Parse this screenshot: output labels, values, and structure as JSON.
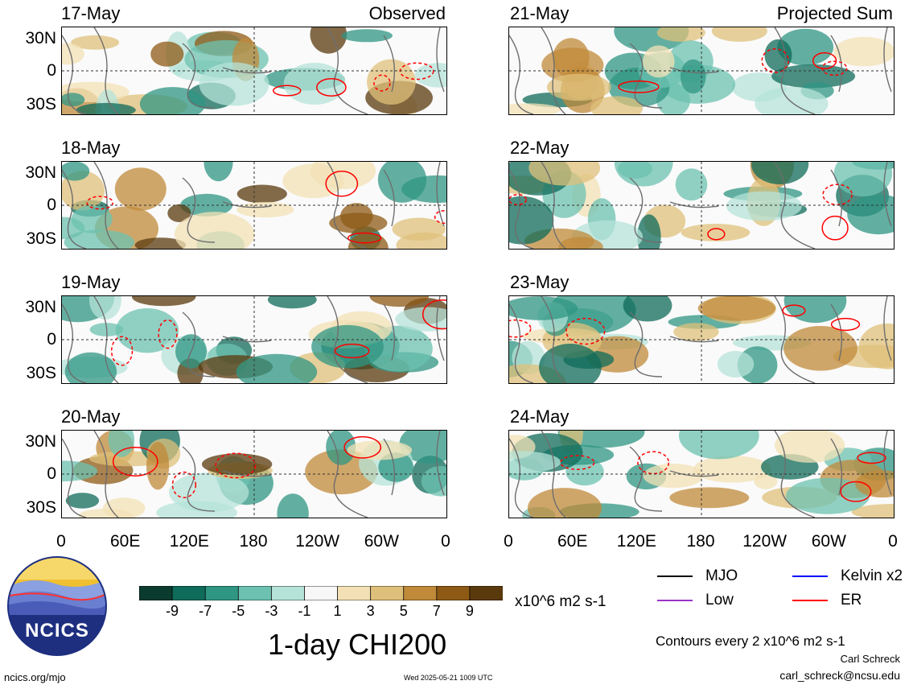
{
  "panels_left": [
    {
      "date": "17-May",
      "tag": "Observed"
    },
    {
      "date": "18-May",
      "tag": ""
    },
    {
      "date": "19-May",
      "tag": ""
    },
    {
      "date": "20-May",
      "tag": ""
    }
  ],
  "panels_right": [
    {
      "date": "21-May",
      "tag": "Projected Sum"
    },
    {
      "date": "22-May",
      "tag": ""
    },
    {
      "date": "23-May",
      "tag": ""
    },
    {
      "date": "24-May",
      "tag": ""
    }
  ],
  "lat_labels": [
    "30N",
    "0",
    "30S"
  ],
  "lon_labels": [
    "0",
    "60E",
    "120E",
    "180",
    "120W",
    "60W",
    "0"
  ],
  "colorbar": {
    "labels": [
      "-9",
      "-7",
      "-5",
      "-3",
      "-1",
      "1",
      "3",
      "5",
      "7",
      "9"
    ],
    "colors": [
      "#0b3b2e",
      "#0f6b5a",
      "#2f9683",
      "#6cc1b0",
      "#b6e3d8",
      "#f7f7f7",
      "#f3e1b5",
      "#dfc07a",
      "#c08a3a",
      "#8e5a15",
      "#5a3a0d"
    ],
    "units": "x10^6 m2 s-1"
  },
  "title": "1-day CHI200",
  "legend": {
    "items": [
      {
        "label": "MJO",
        "color": "#000000"
      },
      {
        "label": "Kelvin x2",
        "color": "#0000ff"
      },
      {
        "label": "Low",
        "color": "#9933cc"
      },
      {
        "label": "ER",
        "color": "#ff0000"
      }
    ],
    "contours_note": "Contours every 2 x10^6 m2 s-1"
  },
  "credits": {
    "author": "Carl Schreck",
    "email": "carl_schreck@ncsu.edu",
    "site": "ncics.org/mjo",
    "timestamp": "Wed 2025-05-21 1009 UTC"
  },
  "logo": {
    "text": "NCICS"
  }
}
